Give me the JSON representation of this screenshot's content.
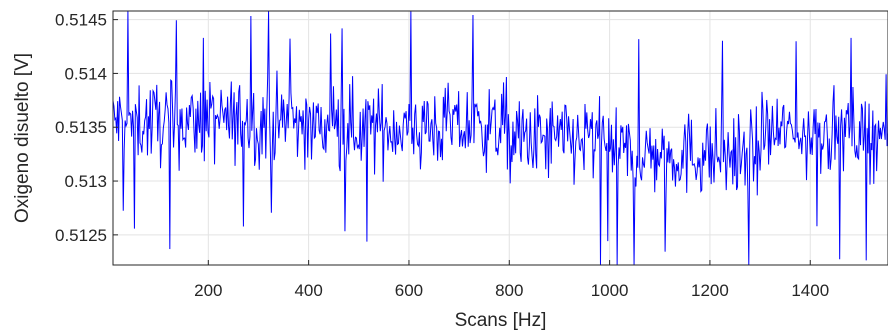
{
  "chart_data": {
    "type": "line",
    "title": "",
    "xlabel": "Scans [Hz]",
    "ylabel": "Oxigeno disuelto [V]",
    "xlim": [
      10,
      1555
    ],
    "ylim": [
      0.51222,
      0.51458
    ],
    "xticks": [
      200,
      400,
      600,
      800,
      1000,
      1200,
      1400
    ],
    "xtick_labels": [
      "200",
      "400",
      "600",
      "800",
      "1000",
      "1200",
      "1400"
    ],
    "yticks": [
      0.5125,
      0.513,
      0.5135,
      0.514,
      0.5145
    ],
    "ytick_labels": [
      "0.5125",
      "0.513",
      "0.5135",
      "0.514",
      "0.5145"
    ],
    "grid": true,
    "series": [
      {
        "color": "#0000ff",
        "segments": [
          {
            "x_start": 10,
            "x_end": 400,
            "mean": 0.51355,
            "amplitude": 0.00035,
            "points": 210
          },
          {
            "x_start": 400,
            "x_end": 800,
            "mean": 0.5135,
            "amplitude": 0.00035,
            "points": 210
          },
          {
            "x_start": 800,
            "x_end": 1000,
            "mean": 0.51338,
            "amplitude": 0.00037,
            "points": 110
          },
          {
            "x_start": 1000,
            "x_end": 1300,
            "mean": 0.51325,
            "amplitude": 0.00035,
            "points": 160
          },
          {
            "x_start": 1300,
            "x_end": 1555,
            "mean": 0.51345,
            "amplitude": 0.00035,
            "points": 135
          }
        ],
        "min": 0.51222,
        "max": 0.51458
      }
    ]
  }
}
